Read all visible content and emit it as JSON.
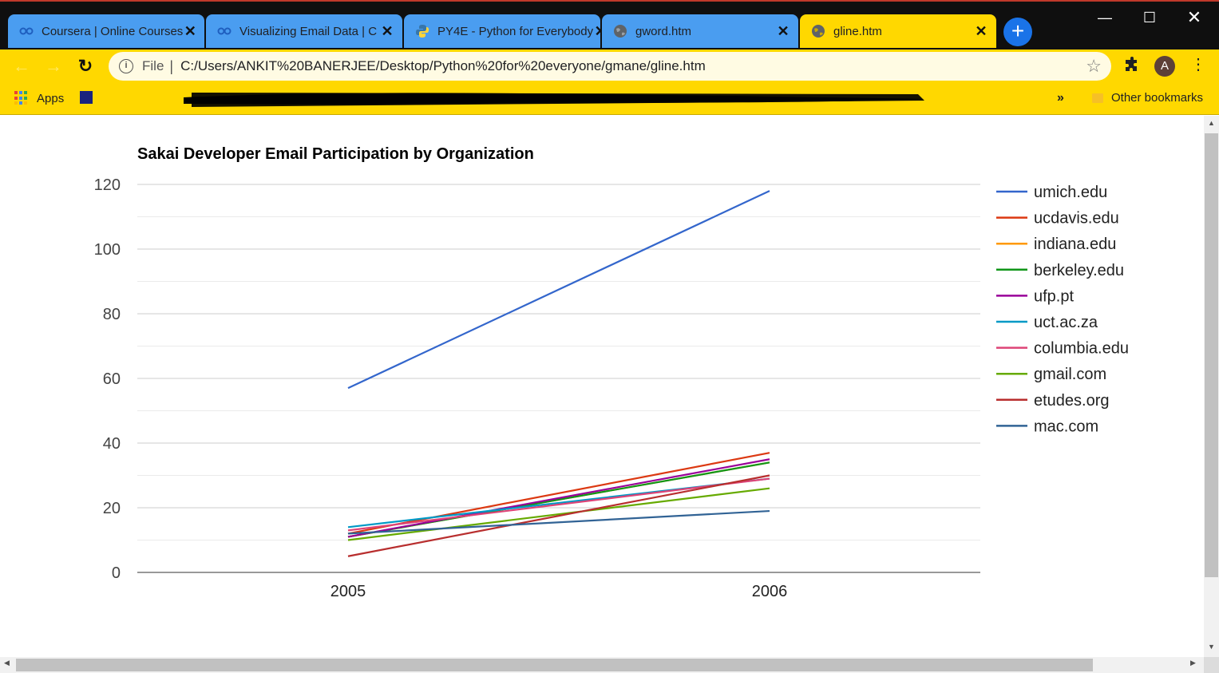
{
  "browser": {
    "tabs": [
      {
        "title": "Coursera | Online Courses",
        "icon": "coursera-icon",
        "active": false
      },
      {
        "title": "Visualizing Email Data | C",
        "icon": "coursera-icon",
        "active": false
      },
      {
        "title": "PY4E - Python for Everybody",
        "icon": "python-icon",
        "active": false
      },
      {
        "title": "gword.htm",
        "icon": "globe-icon",
        "active": false
      },
      {
        "title": "gline.htm",
        "icon": "globe-icon",
        "active": true
      }
    ],
    "address": {
      "scheme": "File",
      "url": "C:/Users/ANKIT%20BANERJEE/Desktop/Python%20for%20everyone/gmane/gline.htm"
    },
    "profile_initial": "A",
    "bookmarks": {
      "apps_label": "Apps",
      "other_label": "Other bookmarks",
      "overflow": "»"
    },
    "theme_color": "#ffd800",
    "tab_color": "#4a9df0"
  },
  "chart_data": {
    "type": "line",
    "title": "Sakai Developer Email Participation by Organization",
    "xlabel": "",
    "ylabel": "",
    "categories": [
      "2005",
      "2006"
    ],
    "ylim": [
      0,
      120
    ],
    "yticks": [
      0,
      20,
      40,
      60,
      80,
      100,
      120
    ],
    "grid": true,
    "legend_position": "right",
    "series": [
      {
        "name": "umich.edu",
        "color": "#3366cc",
        "values": [
          57,
          118
        ]
      },
      {
        "name": "ucdavis.edu",
        "color": "#dc3912",
        "values": [
          12,
          37
        ]
      },
      {
        "name": "indiana.edu",
        "color": "#ff9900",
        "values": [
          11,
          34
        ]
      },
      {
        "name": "berkeley.edu",
        "color": "#109618",
        "values": [
          11,
          34
        ]
      },
      {
        "name": "ufp.pt",
        "color": "#990099",
        "values": [
          11,
          35
        ]
      },
      {
        "name": "uct.ac.za",
        "color": "#0099c6",
        "values": [
          14,
          29
        ]
      },
      {
        "name": "columbia.edu",
        "color": "#dd4477",
        "values": [
          13,
          29
        ]
      },
      {
        "name": "gmail.com",
        "color": "#66aa00",
        "values": [
          10,
          26
        ]
      },
      {
        "name": "etudes.org",
        "color": "#b82e2e",
        "values": [
          5,
          30
        ]
      },
      {
        "name": "mac.com",
        "color": "#316395",
        "values": [
          12,
          19
        ]
      }
    ]
  }
}
